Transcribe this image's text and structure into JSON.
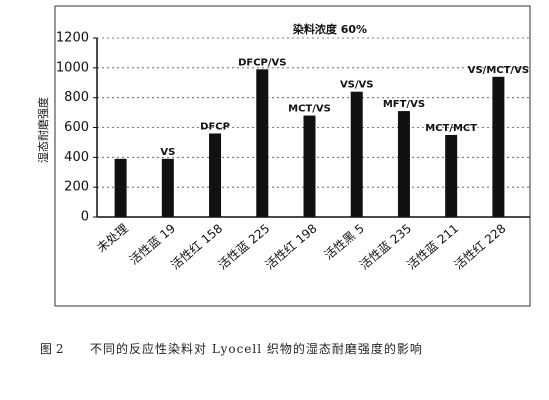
{
  "chart_data": {
    "type": "bar",
    "title": "染料浓度 60%",
    "y_label": "湿态耐磨强度",
    "categories": [
      "未处理",
      "活性蓝 19",
      "活性红 158",
      "活性蓝 225",
      "活性红 198",
      "活性黑 5",
      "活性蓝 235",
      "活性蓝 211",
      "活性红 228"
    ],
    "values": [
      390,
      390,
      560,
      990,
      680,
      840,
      710,
      550,
      940
    ],
    "bar_labels": [
      null,
      "VS",
      "DFCP",
      "DFCP/VS",
      "MCT/VS",
      "VS/VS",
      "MFT/VS",
      "MCT/MCT",
      "VS/MCT/VS"
    ],
    "color": "#111111",
    "ylim": [
      0,
      1200
    ],
    "yticks": [
      0,
      200,
      400,
      600,
      800,
      1000,
      1200
    ],
    "grid": true
  },
  "figure_label": "图 2",
  "caption": "不同的反应性染料对 Lyocell 织物的湿态耐磨强度的影响"
}
